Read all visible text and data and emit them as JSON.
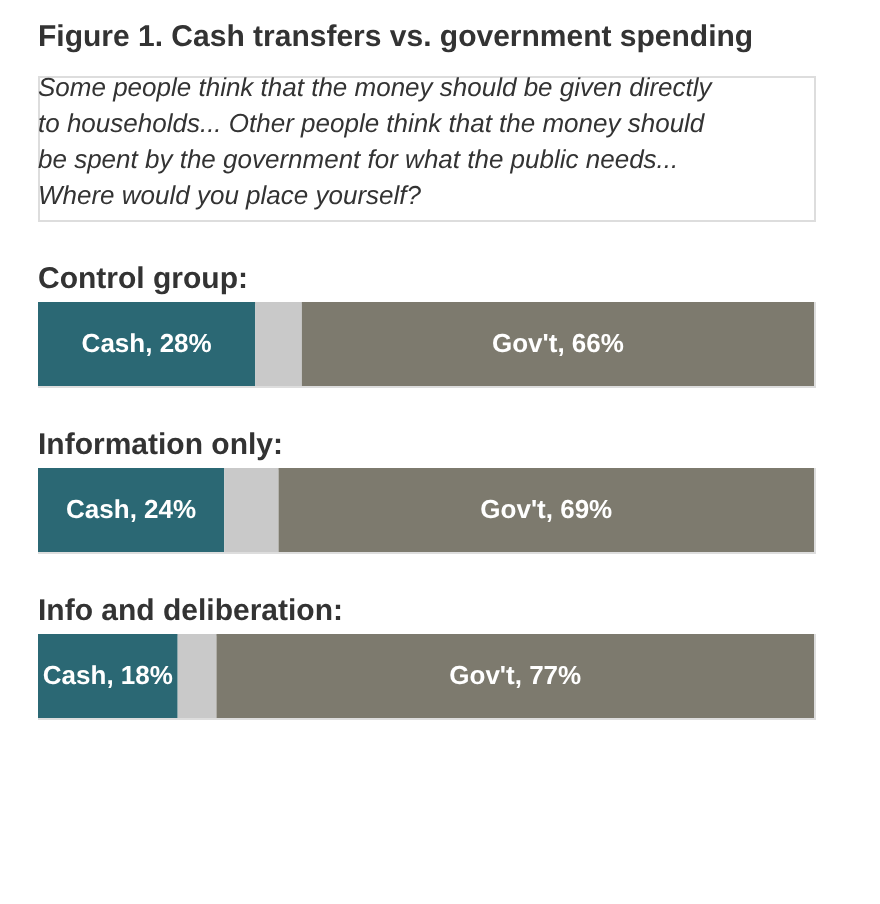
{
  "chart_data": [
    {
      "type": "other",
      "title": "Figure 1. Cash transfers vs. government spending",
      "subtitle": "Some people think that the money should be given directly to households... Other people think that the money should be spent by the government for what the public needs... Where would you place yourself?"
    },
    {
      "type": "bar",
      "orientation": "horizontal",
      "stacked": true,
      "title": "Control group:",
      "categories": [
        null
      ],
      "series": [
        {
          "color": "#2b6874",
          "values": [
            28
          ],
          "value_labels": [
            "Cash, 28%"
          ]
        },
        {
          "color": "#c9c9c9",
          "values": [
            6
          ],
          "value_labels": [
            null
          ]
        },
        {
          "color": "#7d7a6e",
          "values": [
            66
          ],
          "value_labels": [
            "Gov't, 66%"
          ]
        }
      ],
      "xlim": [
        0,
        100
      ],
      "tick_labels": false
    },
    {
      "type": "bar",
      "orientation": "horizontal",
      "stacked": true,
      "title": "Information only:",
      "categories": [
        null
      ],
      "series": [
        {
          "color": "#2b6874",
          "values": [
            24
          ],
          "value_labels": [
            "Cash, 24%"
          ]
        },
        {
          "color": "#c9c9c9",
          "values": [
            7
          ],
          "value_labels": [
            null
          ]
        },
        {
          "color": "#7d7a6e",
          "values": [
            69
          ],
          "value_labels": [
            "Gov't, 69%"
          ]
        }
      ],
      "xlim": [
        0,
        100
      ],
      "tick_labels": false
    },
    {
      "type": "bar",
      "orientation": "horizontal",
      "stacked": true,
      "title": "Info and deliberation:",
      "categories": [
        null
      ],
      "series": [
        {
          "color": "#2b6874",
          "values": [
            18
          ],
          "value_labels": [
            "Cash, 18%"
          ]
        },
        {
          "color": "#c9c9c9",
          "values": [
            5
          ],
          "value_labels": [
            null
          ]
        },
        {
          "color": "#7d7a6e",
          "values": [
            77
          ],
          "value_labels": [
            "Gov't, 77%"
          ]
        }
      ],
      "xlim": [
        0,
        100
      ],
      "tick_labels": false
    }
  ]
}
